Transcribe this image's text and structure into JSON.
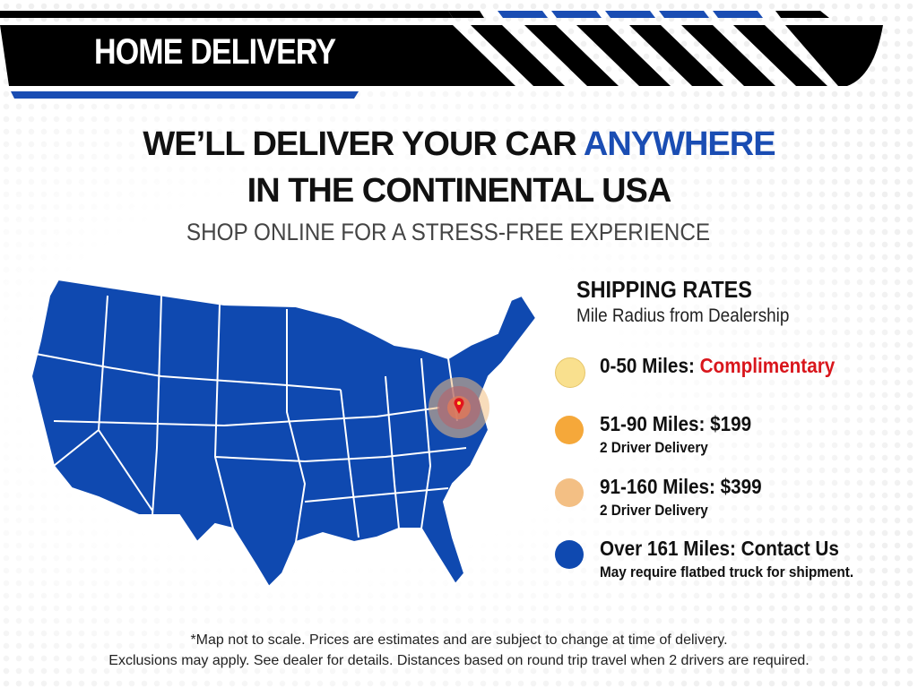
{
  "header": {
    "title": "HOME DELIVERY"
  },
  "headline": {
    "line1_prefix": "WE’LL DELIVER YOUR CAR ",
    "line1_accent": "ANYWHERE",
    "line2": "IN THE CONTINENTAL USA",
    "subtitle": "SHOP ONLINE FOR A STRESS-FREE EXPERIENCE"
  },
  "colors": {
    "brand_blue": "#1a4db3",
    "accent_red": "#d9161c",
    "zone1": "#f9e08e",
    "zone2": "#f5a83a",
    "zone3": "#f3bf84",
    "zone4": "#0f49b0"
  },
  "rates": {
    "title": "SHIPPING RATES",
    "subtitle": "Mile Radius from Dealership",
    "items": [
      {
        "label": "0-50 Miles: ",
        "value": "Complimentary",
        "note": ""
      },
      {
        "label": "51-90 Miles: $199",
        "value": "",
        "note": "2 Driver Delivery"
      },
      {
        "label": "91-160 Miles: $399",
        "value": "",
        "note": "2 Driver Delivery"
      },
      {
        "label": "Over 161 Miles: Contact Us",
        "value": "",
        "note": "May require flatbed truck for shipment."
      }
    ]
  },
  "map": {
    "marker_icon": "map-pin-icon"
  },
  "footer": {
    "line1": "*Map not to scale. Prices are estimates and are subject to change at time of delivery.",
    "line2": "Exclusions may apply. See dealer for details. Distances based on round trip travel when 2 drivers are required."
  }
}
